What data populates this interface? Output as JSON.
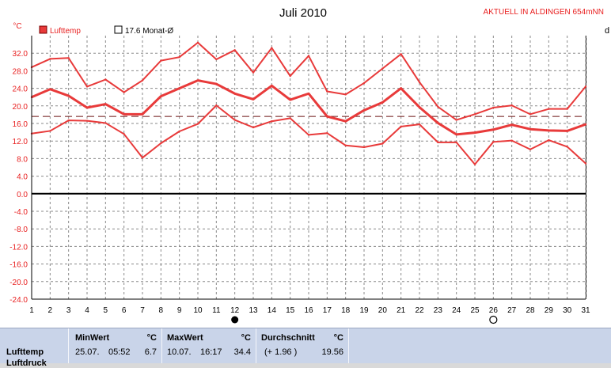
{
  "header": {
    "title": "Juli 2010",
    "status": "AKTUELL IN ALDINGEN 654mNN",
    "right_edge_char": "d"
  },
  "chart_data": {
    "type": "line",
    "title": "Juli 2010",
    "ylabel": "°C",
    "xlim": [
      1,
      31
    ],
    "ylim": [
      -24,
      36
    ],
    "grid": true,
    "legend_position": "top-left",
    "x": [
      1,
      2,
      3,
      4,
      5,
      6,
      7,
      8,
      9,
      10,
      11,
      12,
      13,
      14,
      15,
      16,
      17,
      18,
      19,
      20,
      21,
      22,
      23,
      24,
      25,
      26,
      27,
      28,
      29,
      30,
      31
    ],
    "x_tick_labels": [
      "1",
      "2",
      "3",
      "4",
      "5",
      "6",
      "7",
      "8",
      "9",
      "10",
      "11",
      "12",
      "13",
      "14",
      "15",
      "16",
      "17",
      "18",
      "19",
      "20",
      "21",
      "22",
      "23",
      "24",
      "25",
      "26",
      "27",
      "28",
      "29",
      "30",
      "31"
    ],
    "y_tick_labels": [
      "32.0",
      "28.0",
      "24.0",
      "20.0",
      "16.0",
      "12.0",
      "8.0",
      "4.0",
      "0.0",
      "-4.0",
      "-8.0",
      "-12.0",
      "-16.0",
      "-20.0",
      "-24.0"
    ],
    "y_ticks": [
      32,
      28,
      24,
      20,
      16,
      12,
      8,
      4,
      0,
      -4,
      -8,
      -12,
      -16,
      -20,
      -24
    ],
    "series": [
      {
        "name": "max",
        "role": "max",
        "color": "#e83a3a",
        "values": [
          28.8,
          30.7,
          30.9,
          24.4,
          26.0,
          23.1,
          25.8,
          30.3,
          31.1,
          34.4,
          30.6,
          32.7,
          27.6,
          33.2,
          26.8,
          31.4,
          23.3,
          22.6,
          25.2,
          28.5,
          31.8,
          25.4,
          19.8,
          16.8,
          18.1,
          19.6,
          20.1,
          18.1,
          19.3,
          19.3,
          24.4
        ]
      },
      {
        "name": "Lufttemp",
        "role": "avg",
        "color": "#e83a3a",
        "values": [
          22.0,
          23.8,
          22.3,
          19.6,
          20.4,
          18.1,
          18.1,
          22.2,
          24.0,
          25.8,
          25.0,
          22.8,
          21.5,
          24.6,
          21.4,
          22.8,
          17.6,
          16.5,
          19.0,
          20.8,
          24.0,
          19.7,
          16.1,
          13.5,
          13.9,
          14.6,
          15.7,
          14.7,
          14.4,
          14.3,
          15.8
        ]
      },
      {
        "name": "min",
        "role": "min",
        "color": "#e83a3a",
        "values": [
          13.7,
          14.3,
          16.7,
          16.6,
          16.1,
          13.6,
          8.2,
          11.5,
          14.2,
          15.9,
          20.1,
          16.8,
          15.1,
          16.5,
          17.2,
          13.4,
          13.8,
          11.0,
          10.6,
          11.4,
          15.3,
          15.8,
          11.7,
          11.7,
          6.7,
          11.8,
          12.1,
          10.1,
          12.2,
          10.7,
          6.9
        ]
      }
    ],
    "reference_line": {
      "name": "17.6 Monat-Ø",
      "value": 17.6,
      "color": "#6b1010"
    },
    "zero_line": {
      "value": 0.0,
      "color": "#000000"
    },
    "moon_markers": [
      {
        "day": 12,
        "phase": "new-moon"
      },
      {
        "day": 26,
        "phase": "full-moon"
      }
    ],
    "legend": [
      {
        "label": "Lufttemp",
        "color": "#e83a3a"
      },
      {
        "label": "17.6 Monat-Ø",
        "color": "#ffffff"
      }
    ]
  },
  "stats": {
    "row_label": "Lufttemp",
    "row_label_2": "Luftdruck",
    "columns": [
      {
        "header": "MinWert",
        "unit": "°C",
        "date": "25.07.",
        "time": "05:52",
        "value": "6.7"
      },
      {
        "header": "MaxWert",
        "unit": "°C",
        "date": "10.07.",
        "time": "16:17",
        "value": "34.4"
      },
      {
        "header": "Durchschnitt",
        "unit": "°C",
        "diff": "(+ 1.96 )",
        "value": "19.56"
      }
    ]
  }
}
